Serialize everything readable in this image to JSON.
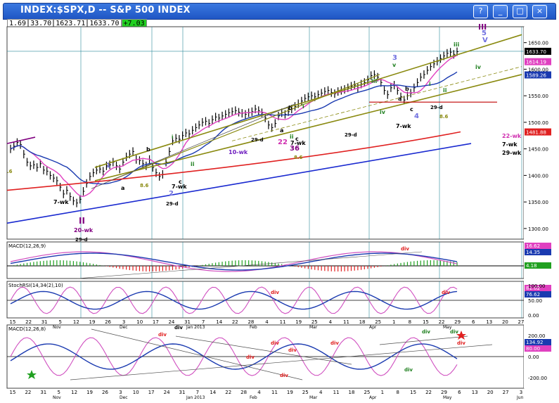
{
  "window": {
    "title": "INDEX:$SPX,D -- S&P 500 INDEX",
    "buttons": [
      "?",
      "_",
      "□",
      "×"
    ]
  },
  "infobar": {
    "o": "1.69",
    "h": "33.70",
    "l": "1623.71",
    "c": "1633.70",
    "chg": "+7.03"
  },
  "colors": {
    "price": "#000000",
    "ma_short": "#e040c0",
    "ma_long": "#1a3ab0",
    "ma_200": "#e02020",
    "channel": "#8a8a10",
    "trend_blue": "#1a2ad0",
    "hline": "#c00000",
    "grid": "#2a8a9a",
    "stoch": "#d050c0"
  },
  "price_labels": [
    {
      "text": "1633.70",
      "value": 1633.7,
      "bg": "#000000",
      "fg": "#ffffff"
    },
    {
      "text": "1614.19",
      "value": 1614.19,
      "bg": "#e040c0",
      "fg": "#ffffff"
    },
    {
      "text": "1589.26",
      "value": 1589.26,
      "bg": "#1a3ab0",
      "fg": "#ffffff"
    },
    {
      "text": "1481.88",
      "value": 1481.88,
      "bg": "#e02020",
      "fg": "#ffffff"
    }
  ],
  "price_axis_ticks": [
    "1650.00",
    "1600.00",
    "1550.00",
    "1500.00",
    "1450.00",
    "1400.00",
    "1350.00",
    "1300.00"
  ],
  "macd_panel": {
    "title": "MACD(12,26,9)",
    "labels": [
      {
        "text": "16.62",
        "bg": "#e040c0"
      },
      {
        "text": "14.35",
        "bg": "#1a3ab0"
      },
      {
        "text": "4.18",
        "bg": "#20a020"
      }
    ]
  },
  "stoch_panel": {
    "title": "StochRSI(14,34(2),10)",
    "labels": [
      {
        "text": "81.02",
        "bg": "#e040c0"
      },
      {
        "text": "76.62",
        "bg": "#1a3ab0"
      }
    ],
    "ticks": [
      "100.00",
      "50.00",
      "0.00"
    ]
  },
  "macd2_panel": {
    "title": "MACD(12,26,8)",
    "labels": [
      {
        "text": "134.92",
        "bg": "#1a3ab0"
      },
      {
        "text": "80.00",
        "bg": "#e040c0"
      }
    ],
    "ticks": [
      "200.00",
      "0.00",
      "-200.00"
    ]
  },
  "x_axis_upper": [
    "15",
    "22",
    "31",
    "5",
    "12",
    "19",
    "26",
    "3",
    "10",
    "17",
    "24",
    "31",
    "7",
    "14",
    "22",
    "28",
    "4",
    "11",
    "19",
    "25",
    "4",
    "11",
    "18",
    "25",
    "1",
    "8",
    "15",
    "22",
    "29",
    "6",
    "13",
    "20",
    "27"
  ],
  "month_labels_upper": [
    "Nov",
    "Dec",
    "Jan 2013",
    "Feb",
    "Mar",
    "Apr",
    "May"
  ],
  "x_axis_lower": [
    "15",
    "22",
    "31",
    "5",
    "12",
    "19",
    "26",
    "3",
    "10",
    "17",
    "24",
    "31",
    "7",
    "14",
    "22",
    "28",
    "4",
    "11",
    "19",
    "25",
    "4",
    "11",
    "18",
    "25",
    "1",
    "8",
    "15",
    "22",
    "29",
    "6",
    "13",
    "20",
    "27",
    "3"
  ],
  "month_labels_lower": [
    "Nov",
    "Dec",
    "Jan 2013",
    "Feb",
    "Mar",
    "Apr",
    "May",
    "Jun"
  ],
  "annotations": [
    {
      "text": "III",
      "color": "#800080",
      "key": "a1"
    },
    {
      "text": "5",
      "color": "#7070e0",
      "key": "a2"
    },
    {
      "text": "V",
      "color": "#7070e0",
      "key": "a3"
    },
    {
      "text": "iii",
      "color": "#208020",
      "key": "a4"
    },
    {
      "text": "iv",
      "color": "#208020",
      "key": "a5"
    },
    {
      "text": "3",
      "color": "#7070e0",
      "key": "a6"
    },
    {
      "text": "v",
      "color": "#208020",
      "key": "a7"
    },
    {
      "text": "iii",
      "color": "#208020",
      "key": "a8"
    },
    {
      "text": "a",
      "color": "#000000",
      "key": "a9"
    },
    {
      "text": "b",
      "color": "#000000",
      "key": "a10"
    },
    {
      "text": "i",
      "color": "#208020",
      "key": "a11"
    },
    {
      "text": "ii",
      "color": "#208020",
      "key": "a12"
    },
    {
      "text": "iv",
      "color": "#208020",
      "key": "a13"
    },
    {
      "text": "c",
      "color": "#000000",
      "key": "a14"
    },
    {
      "text": "4",
      "color": "#7070e0",
      "key": "a15"
    },
    {
      "text": "29-d",
      "color": "#000000",
      "key": "a16"
    },
    {
      "text": "8.6",
      "color": "#8a8a10",
      "key": "a17"
    },
    {
      "text": "7-wk",
      "color": "#000000",
      "key": "a18"
    },
    {
      "text": "29-d",
      "color": "#000000",
      "key": "a19"
    },
    {
      "text": "i",
      "color": "#208020",
      "key": "a20"
    },
    {
      "text": "b",
      "color": "#000000",
      "key": "a21"
    },
    {
      "text": "a",
      "color": "#000000",
      "key": "a22"
    },
    {
      "text": "29-d",
      "color": "#000000",
      "key": "a23"
    },
    {
      "text": "ii",
      "color": "#208020",
      "key": "a24"
    },
    {
      "text": "c",
      "color": "#000000",
      "key": "a25"
    },
    {
      "text": "22",
      "color": "#d030b0",
      "key": "a26"
    },
    {
      "text": "36",
      "color": "#800080",
      "key": "a27"
    },
    {
      "text": "7-wk",
      "color": "#000000",
      "key": "a28"
    },
    {
      "text": "8.6",
      "color": "#8a8a10",
      "key": "a29"
    },
    {
      "text": "10-wk",
      "color": "#7020c0",
      "key": "a30"
    },
    {
      "text": "22-wk",
      "color": "#d030b0",
      "key": "a31"
    },
    {
      "text": "7-wk",
      "color": "#000000",
      "key": "a32"
    },
    {
      "text": "29-wk",
      "color": "#000000",
      "key": "a33"
    },
    {
      "text": "i",
      "color": "#208020",
      "key": "a34"
    },
    {
      "text": "b",
      "color": "#000000",
      "key": "a35"
    },
    {
      "text": "1",
      "color": "#7070e0",
      "key": "a36"
    },
    {
      "text": "a",
      "color": "#000000",
      "key": "a37"
    },
    {
      "text": "8.6",
      "color": "#8a8a10",
      "key": "a38"
    },
    {
      "text": "ii",
      "color": "#208020",
      "key": "a39"
    },
    {
      "text": "c",
      "color": "#000000",
      "key": "a40"
    },
    {
      "text": "7-wk",
      "color": "#000000",
      "key": "a41"
    },
    {
      "text": "2",
      "color": "#7070e0",
      "key": "a42"
    },
    {
      "text": "29-d",
      "color": "#000000",
      "key": "a43"
    },
    {
      "text": "7-wk",
      "color": "#000000",
      "key": "a44"
    },
    {
      "text": "II",
      "color": "#800080",
      "key": "a45"
    },
    {
      "text": "20-wk",
      "color": "#800080",
      "key": "a46"
    },
    {
      "text": "29-d",
      "color": "#000000",
      "key": "a47"
    },
    {
      "text": ".6",
      "color": "#8a8a10",
      "key": "a48"
    }
  ],
  "div_labels": [
    {
      "text": "div",
      "key": "d1"
    },
    {
      "text": "div",
      "key": "d2"
    },
    {
      "text": "div",
      "key": "d3"
    },
    {
      "text": "div",
      "key": "d4"
    },
    {
      "text": "div",
      "key": "d5"
    },
    {
      "text": "div",
      "key": "d6"
    },
    {
      "text": "div",
      "key": "d7"
    },
    {
      "text": "div",
      "key": "d8"
    },
    {
      "text": "div",
      "key": "d9"
    },
    {
      "text": "div",
      "key": "d10"
    },
    {
      "text": "div",
      "key": "d11"
    },
    {
      "text": "div",
      "key": "d12"
    },
    {
      "text": "div",
      "key": "d13"
    },
    {
      "text": "div",
      "key": "d14"
    }
  ],
  "chart_data": {
    "type": "line",
    "symbol": "INDEX:$SPX",
    "interval": "D",
    "ylim": [
      1280,
      1680
    ],
    "grid": true,
    "price_path": [
      1450,
      1455,
      1462,
      1458,
      1440,
      1425,
      1418,
      1420,
      1415,
      1422,
      1410,
      1408,
      1400,
      1395,
      1390,
      1378,
      1365,
      1372,
      1360,
      1352,
      1348,
      1355,
      1370,
      1385,
      1398,
      1405,
      1410,
      1412,
      1408,
      1418,
      1420,
      1425,
      1418,
      1412,
      1425,
      1435,
      1440,
      1445,
      1430,
      1428,
      1422,
      1418,
      1430,
      1415,
      1405,
      1398,
      1402,
      1425,
      1445,
      1465,
      1470,
      1468,
      1475,
      1480,
      1478,
      1485,
      1490,
      1495,
      1500,
      1502,
      1498,
      1505,
      1510,
      1508,
      1512,
      1515,
      1518,
      1520,
      1522,
      1519,
      1517,
      1515,
      1518,
      1520,
      1525,
      1522,
      1518,
      1508,
      1495,
      1490,
      1498,
      1512,
      1518,
      1515,
      1520,
      1525,
      1530,
      1535,
      1540,
      1545,
      1548,
      1550,
      1548,
      1552,
      1555,
      1558,
      1560,
      1556,
      1554,
      1558,
      1560,
      1562,
      1565,
      1568,
      1570,
      1565,
      1572,
      1575,
      1580,
      1588,
      1590,
      1585,
      1575,
      1560,
      1552,
      1565,
      1570,
      1560,
      1548,
      1542,
      1550,
      1555,
      1565,
      1575,
      1585,
      1590,
      1598,
      1605,
      1610,
      1615,
      1620,
      1625,
      1630,
      1632,
      1628,
      1633
    ]
  }
}
